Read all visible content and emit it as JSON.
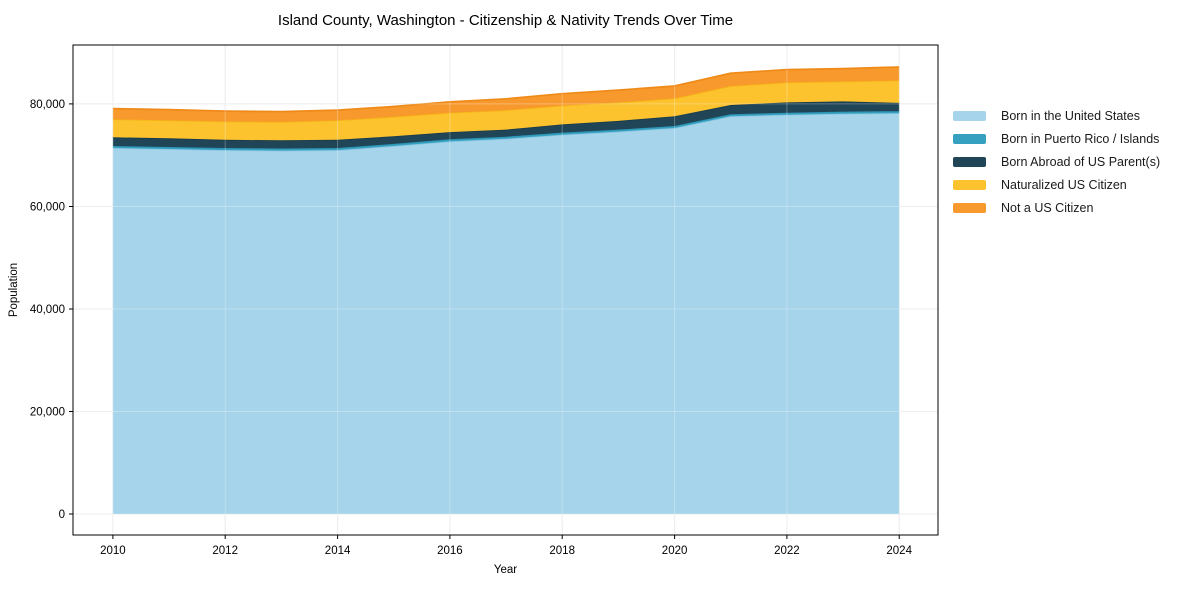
{
  "page": {
    "background": "#ffffff"
  },
  "chart_data": {
    "type": "area",
    "stacked": true,
    "title": "Island County, Washington - Citizenship & Nativity Trends Over Time",
    "xlabel": "Year",
    "ylabel": "Population",
    "x": [
      2010,
      2011,
      2012,
      2013,
      2014,
      2015,
      2016,
      2017,
      2018,
      2019,
      2020,
      2021,
      2022,
      2023,
      2024
    ],
    "series": [
      {
        "name": "Born in the United States",
        "color": "#a6d4ea",
        "edge": "#8dc8e4",
        "values": [
          71400,
          71200,
          71000,
          70900,
          71000,
          71800,
          72700,
          73200,
          74000,
          74600,
          75300,
          77600,
          77900,
          78100,
          78200
        ]
      },
      {
        "name": "Born in Puerto Rico / Islands",
        "color": "#35a0bf",
        "edge": "#2d94b4",
        "values": [
          400,
          400,
          400,
          400,
          400,
          400,
          400,
          400,
          400,
          400,
          400,
          400,
          400,
          400,
          400
        ]
      },
      {
        "name": "Born Abroad of US Parent(s)",
        "color": "#1f4557",
        "edge": "#1a3c4d",
        "values": [
          1700,
          1700,
          1600,
          1600,
          1600,
          1500,
          1400,
          1400,
          1600,
          1700,
          1900,
          1800,
          2000,
          2000,
          1600
        ]
      },
      {
        "name": "Naturalized US Citizen",
        "color": "#fcc32f",
        "edge": "#f6b314",
        "values": [
          3500,
          3500,
          3600,
          3600,
          3800,
          3800,
          3800,
          3800,
          3700,
          3600,
          3500,
          3700,
          3900,
          3900,
          4400
        ]
      },
      {
        "name": "Not a US Citizen",
        "color": "#f8992e",
        "edge": "#ef8a18",
        "values": [
          2100,
          2100,
          2000,
          2000,
          2000,
          2000,
          2100,
          2200,
          2300,
          2400,
          2400,
          2500,
          2500,
          2500,
          2600
        ]
      }
    ],
    "x_ticks": [
      {
        "value": 2010,
        "label": "2010"
      },
      {
        "value": 2012,
        "label": "2012"
      },
      {
        "value": 2014,
        "label": "2014"
      },
      {
        "value": 2016,
        "label": "2016"
      },
      {
        "value": 2018,
        "label": "2018"
      },
      {
        "value": 2020,
        "label": "2020"
      },
      {
        "value": 2022,
        "label": "2022"
      },
      {
        "value": 2024,
        "label": "2024"
      }
    ],
    "y_ticks": [
      {
        "value": 0,
        "label": "0"
      },
      {
        "value": 20000,
        "label": "20,000"
      },
      {
        "value": 40000,
        "label": "40,000"
      },
      {
        "value": 60000,
        "label": "60,000"
      },
      {
        "value": 80000,
        "label": "80,000"
      }
    ],
    "xlim": [
      2009.29,
      2024.69
    ],
    "ylim": [
      -4100,
      91500
    ],
    "grid": true,
    "legend_position": "right",
    "grid_color": "#e7e7e7",
    "axis_color": "#000000"
  }
}
